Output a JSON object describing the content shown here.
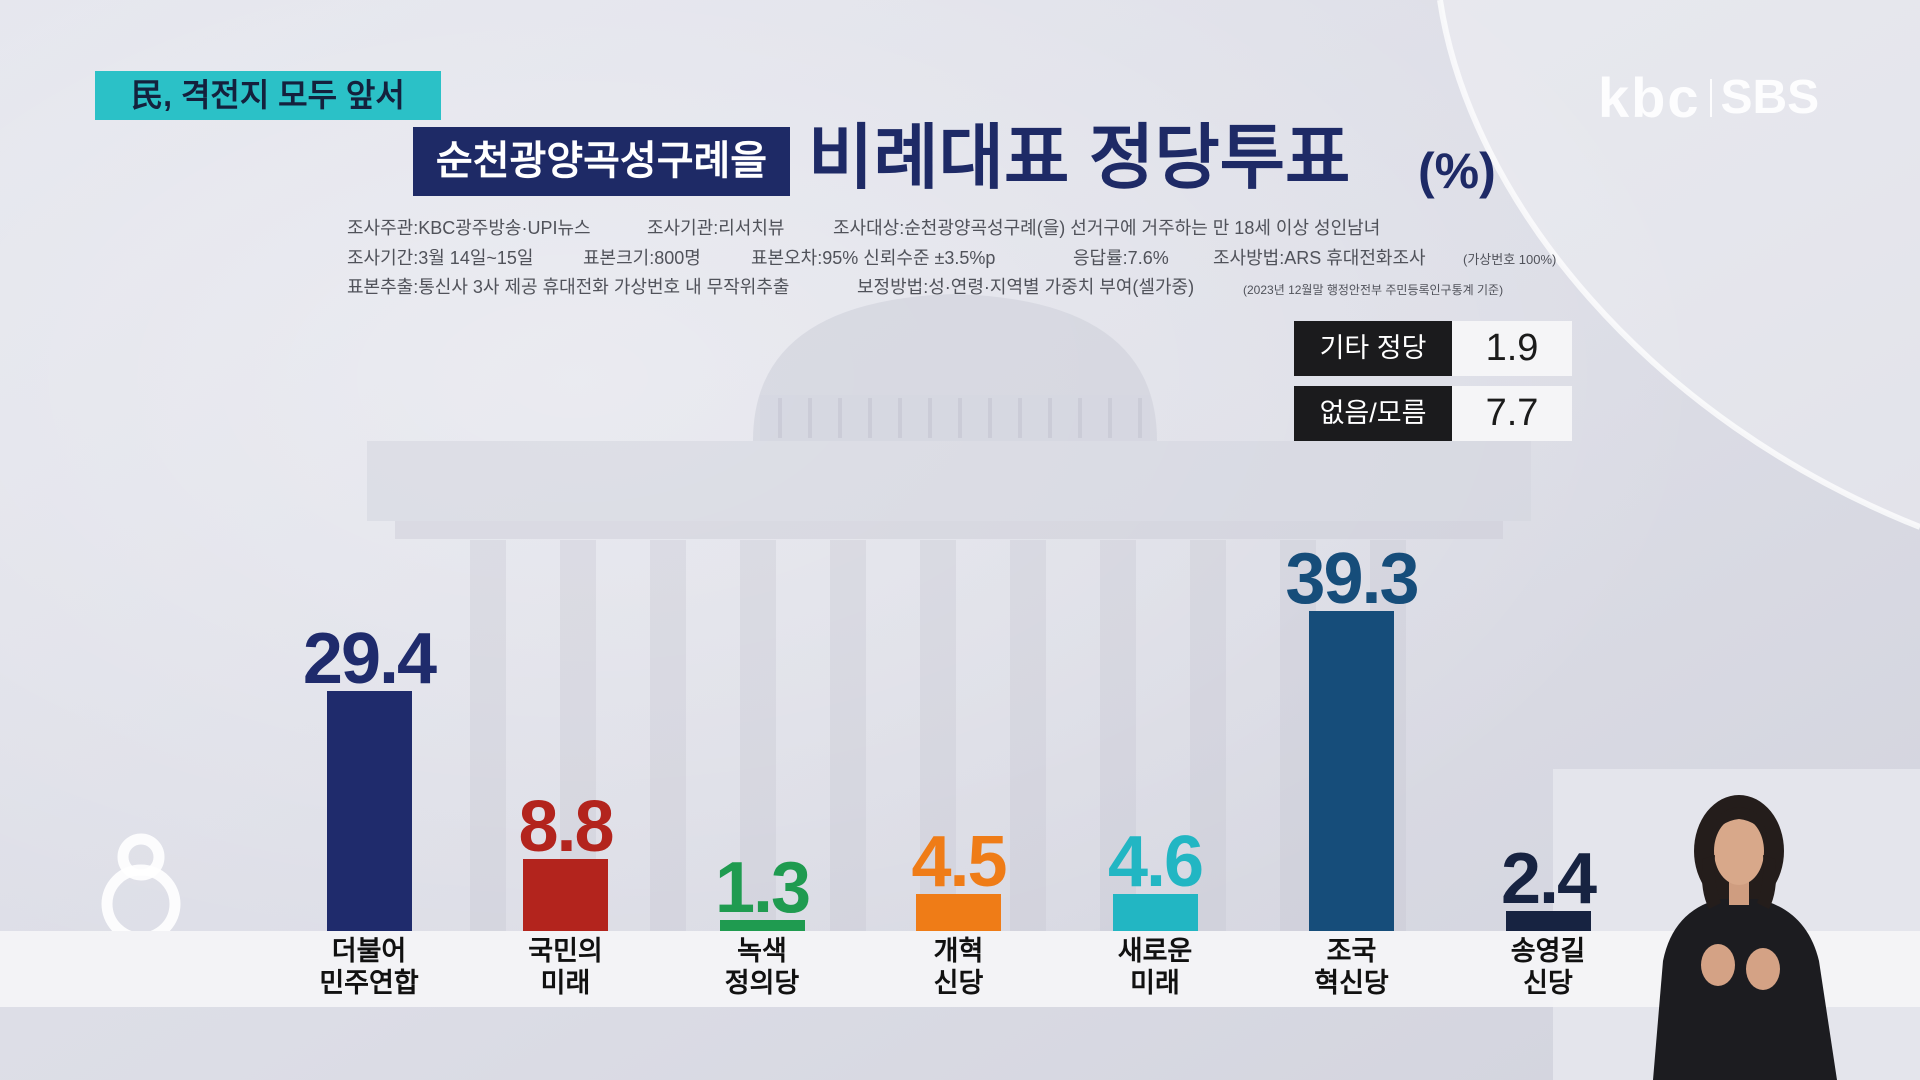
{
  "header": {
    "badge": "民, 격전지 모두 앞서",
    "logo_left": "kbc",
    "logo_right": "SBS"
  },
  "survey_info": {
    "line1": [
      "조사주관:KBC광주방송·UPI뉴스",
      "조사기관:리서치뷰",
      "조사대상:순천광양곡성구례(을) 선거구에 거주하는 만 18세 이상 성인남녀"
    ],
    "line2": [
      "조사기간:3월 14일~15일",
      "표본크기:800명",
      "표본오차:95% 신뢰수준 ±3.5%p",
      "응답률:7.6%",
      "조사방법:ARS 휴대전화조사"
    ],
    "line2_note": "(가상번호 100%)",
    "line3": [
      "표본추출:통신사 3사 제공 휴대전화 가상번호 내 무작위추출",
      "보정방법:성·연령·지역별 가중치 부여(셀가중)"
    ],
    "line3_note": "(2023년 12월말 행정안전부 주민등록인구통계 기준)"
  },
  "chart_data": {
    "type": "bar",
    "district": "순천광양곡성구례을",
    "title": "비례대표 정당투표",
    "unit": "(%)",
    "categories": [
      "더불어\n민주연합",
      "국민의\n미래",
      "녹색\n정의당",
      "개혁\n신당",
      "새로운\n미래",
      "조국\n혁신당",
      "송영길\n신당"
    ],
    "values": [
      29.4,
      8.8,
      1.3,
      4.5,
      4.6,
      39.3,
      2.4
    ],
    "colors": [
      "#1f2b6c",
      "#b3241d",
      "#1f9b50",
      "#ef7c17",
      "#22b6c3",
      "#164d7a",
      "#172341"
    ],
    "other_values": [
      {
        "label": "기타 정당",
        "value": 1.9
      },
      {
        "label": "없음/모름",
        "value": 7.7
      }
    ],
    "grid": false
  },
  "icons": {
    "channel_logo": "channel-8-logo",
    "interpreter": "sign-language-interpreter-video"
  },
  "colors": {
    "badge": "#2bc1c7",
    "title": "#1e2a66",
    "district_box": "#1e2a66",
    "side_label_bg": "#1b1b1d",
    "band": "#f4f4f6"
  }
}
